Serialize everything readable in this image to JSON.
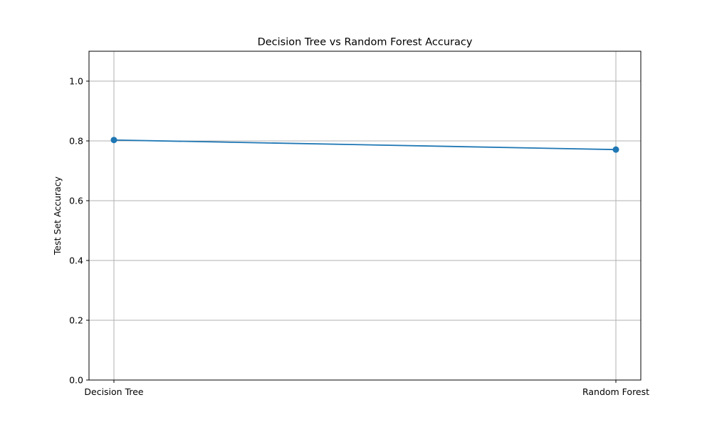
{
  "chart_data": {
    "type": "line",
    "title": "Decision Tree vs Random Forest Accuracy",
    "xlabel": "",
    "ylabel": "Test Set Accuracy",
    "categories": [
      "Decision Tree",
      "Random Forest"
    ],
    "series": [
      {
        "values": [
          0.803,
          0.771
        ],
        "color": "#1f77b4",
        "marker": "circle"
      }
    ],
    "ylim": [
      0.0,
      1.1
    ],
    "yticks": [
      0.0,
      0.2,
      0.4,
      0.6,
      0.8,
      1.0
    ],
    "ytick_labels": [
      "0.0",
      "0.2",
      "0.4",
      "0.6",
      "0.8",
      "1.0"
    ],
    "grid": true,
    "grid_color": "#b0b0b0"
  }
}
